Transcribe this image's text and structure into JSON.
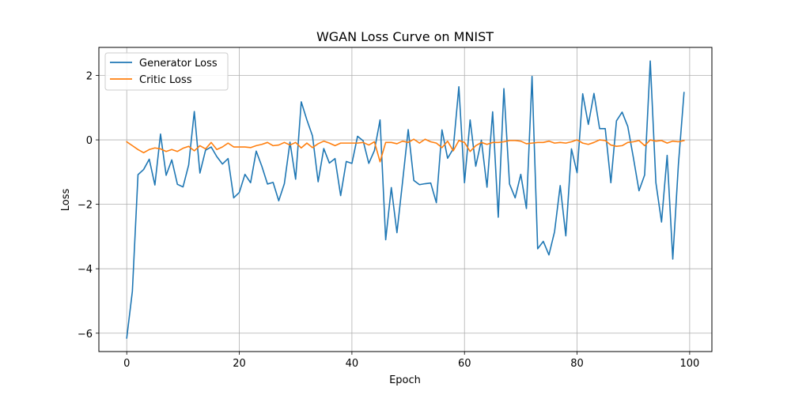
{
  "chart_data": {
    "type": "line",
    "title": "WGAN Loss Curve on MNIST",
    "xlabel": "Epoch",
    "ylabel": "Loss",
    "xlim": [
      -4.95,
      103.95
    ],
    "ylim": [
      -6.57,
      2.87
    ],
    "xticks": [
      0,
      20,
      40,
      60,
      80,
      100
    ],
    "yticks": [
      -6,
      -4,
      -2,
      0,
      2
    ],
    "grid": true,
    "legend": "top-left",
    "x": [
      0,
      1,
      2,
      3,
      4,
      5,
      6,
      7,
      8,
      9,
      10,
      11,
      12,
      13,
      14,
      15,
      16,
      17,
      18,
      19,
      20,
      21,
      22,
      23,
      24,
      25,
      26,
      27,
      28,
      29,
      30,
      31,
      32,
      33,
      34,
      35,
      36,
      37,
      38,
      39,
      40,
      41,
      42,
      43,
      44,
      45,
      46,
      47,
      48,
      49,
      50,
      51,
      52,
      53,
      54,
      55,
      56,
      57,
      58,
      59,
      60,
      61,
      62,
      63,
      64,
      65,
      66,
      67,
      68,
      69,
      70,
      71,
      72,
      73,
      74,
      75,
      76,
      77,
      78,
      79,
      80,
      81,
      82,
      83,
      84,
      85,
      86,
      87,
      88,
      89,
      90,
      91,
      92,
      93,
      94,
      95,
      96,
      97,
      98,
      99
    ],
    "series": [
      {
        "name": "Generator Loss",
        "color": "#1f77b4",
        "values": [
          -6.15,
          -4.7,
          -1.08,
          -0.92,
          -0.6,
          -1.4,
          0.18,
          -1.1,
          -0.62,
          -1.38,
          -1.46,
          -0.78,
          0.88,
          -1.03,
          -0.32,
          -0.22,
          -0.52,
          -0.75,
          -0.58,
          -1.8,
          -1.63,
          -1.07,
          -1.33,
          -0.35,
          -0.82,
          -1.37,
          -1.32,
          -1.89,
          -1.36,
          -0.07,
          -1.22,
          1.18,
          0.62,
          0.12,
          -1.3,
          -0.27,
          -0.72,
          -0.58,
          -1.73,
          -0.67,
          -0.73,
          0.11,
          -0.03,
          -0.73,
          -0.33,
          0.62,
          -3.1,
          -1.48,
          -2.88,
          -1.3,
          0.32,
          -1.26,
          -1.39,
          -1.36,
          -1.34,
          -1.95,
          0.31,
          -0.57,
          -0.28,
          1.65,
          -1.33,
          0.62,
          -0.82,
          -0.01,
          -1.47,
          0.87,
          -2.4,
          1.59,
          -1.37,
          -1.8,
          -1.07,
          -2.13,
          1.97,
          -3.38,
          -3.15,
          -3.57,
          -2.85,
          -1.42,
          -2.98,
          -0.28,
          -1.02,
          1.43,
          0.48,
          1.44,
          0.35,
          0.35,
          -1.33,
          0.59,
          0.86,
          0.42,
          -0.55,
          -1.58,
          -1.09,
          2.45,
          -1.33,
          -2.55,
          -0.48,
          -3.7,
          -0.76,
          1.47
        ]
      },
      {
        "name": "Critic Loss",
        "color": "#ff7f0e",
        "values": [
          -0.06,
          -0.18,
          -0.3,
          -0.4,
          -0.3,
          -0.25,
          -0.28,
          -0.36,
          -0.3,
          -0.36,
          -0.26,
          -0.2,
          -0.34,
          -0.18,
          -0.28,
          -0.08,
          -0.3,
          -0.22,
          -0.1,
          -0.22,
          -0.22,
          -0.22,
          -0.24,
          -0.18,
          -0.14,
          -0.08,
          -0.18,
          -0.16,
          -0.08,
          -0.16,
          -0.08,
          -0.25,
          -0.1,
          -0.24,
          -0.12,
          -0.04,
          -0.1,
          -0.18,
          -0.1,
          -0.1,
          -0.1,
          -0.1,
          -0.08,
          -0.16,
          -0.06,
          -0.68,
          -0.08,
          -0.08,
          -0.12,
          -0.04,
          -0.08,
          0.02,
          -0.1,
          0.02,
          -0.06,
          -0.1,
          -0.24,
          -0.04,
          -0.34,
          -0.02,
          -0.08,
          -0.36,
          -0.18,
          -0.08,
          -0.14,
          -0.08,
          -0.08,
          -0.06,
          -0.02,
          -0.02,
          -0.04,
          -0.12,
          -0.1,
          -0.08,
          -0.08,
          -0.04,
          -0.1,
          -0.08,
          -0.1,
          -0.06,
          0.0,
          -0.1,
          -0.14,
          -0.08,
          0.0,
          -0.02,
          -0.16,
          -0.2,
          -0.18,
          -0.08,
          -0.06,
          -0.02,
          -0.18,
          0.0,
          -0.04,
          -0.02,
          -0.1,
          -0.04,
          -0.06,
          -0.02
        ]
      }
    ]
  }
}
